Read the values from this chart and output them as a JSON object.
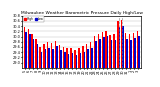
{
  "title": "Milwaukee Weather Barometric Pressure Daily High/Low",
  "high_color": "#ff0000",
  "low_color": "#0000cc",
  "background_color": "#ffffff",
  "ylim": [
    28.8,
    30.8
  ],
  "ytick_vals": [
    29.0,
    29.2,
    29.4,
    29.6,
    29.8,
    30.0,
    30.2,
    30.4,
    30.6,
    30.8
  ],
  "ytick_labels": [
    "29.0",
    "29.2",
    "29.4",
    "29.6",
    "29.8",
    "30.0",
    "30.2",
    "30.4",
    "30.6",
    "30.8"
  ],
  "categories": [
    "5",
    "6",
    "7",
    "8",
    "9",
    "10",
    "11",
    "12",
    "13",
    "14",
    "15",
    "16",
    "17",
    "18",
    "19",
    "20",
    "21",
    "22",
    "23",
    "24",
    "25",
    "26",
    "27",
    "28",
    "29",
    "30",
    "31",
    "1",
    "2",
    "3"
  ],
  "highs": [
    30.38,
    30.28,
    30.1,
    29.9,
    29.6,
    29.72,
    29.78,
    29.74,
    29.82,
    29.68,
    29.6,
    29.55,
    29.58,
    29.48,
    29.58,
    29.62,
    29.72,
    29.78,
    30.02,
    30.1,
    30.18,
    30.22,
    30.05,
    30.08,
    30.58,
    30.62,
    30.12,
    30.08,
    30.15,
    30.22
  ],
  "lows": [
    30.18,
    30.08,
    29.9,
    29.7,
    29.4,
    29.52,
    29.58,
    29.54,
    29.62,
    29.48,
    29.4,
    29.35,
    29.38,
    29.28,
    29.38,
    29.42,
    29.52,
    29.58,
    29.82,
    29.9,
    29.98,
    30.02,
    29.85,
    29.88,
    30.38,
    30.42,
    29.92,
    29.88,
    29.95,
    30.02
  ],
  "dashed_indices": [
    24,
    25
  ],
  "legend_labels": [
    "High",
    "Low"
  ]
}
